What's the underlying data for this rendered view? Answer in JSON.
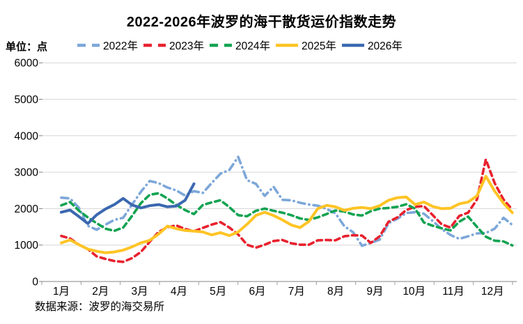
{
  "unit_label": "单位：点",
  "source_note": "数据来源：波罗的海交易所",
  "chart_data": {
    "type": "line",
    "title": "2022-2026年波罗的海干散货运价指数走势",
    "unit": "点",
    "grid": true,
    "legend_position": "top",
    "sampling": "weekly (approx. values read from plot)",
    "y_axis": {
      "min": 0,
      "max": 6000,
      "tick_interval": 1000,
      "ticks": [
        0,
        1000,
        2000,
        3000,
        4000,
        5000,
        6000
      ]
    },
    "x_axis": {
      "labels": [
        "1月",
        "2月",
        "3月",
        "4月",
        "5月",
        "6月",
        "7月",
        "8月",
        "9月",
        "10月",
        "11月",
        "12月"
      ]
    },
    "series": [
      {
        "name": "2022年",
        "color": "#7DA7D9",
        "line_style": "long-dash-dot",
        "values": [
          2300,
          2280,
          2020,
          1530,
          1420,
          1560,
          1690,
          1750,
          2110,
          2460,
          2760,
          2700,
          2580,
          2500,
          2360,
          2480,
          2430,
          2700,
          2960,
          3060,
          3420,
          2780,
          2680,
          2350,
          2600,
          2240,
          2230,
          2160,
          2110,
          2080,
          1990,
          1870,
          1520,
          1350,
          980,
          1060,
          1150,
          1600,
          1720,
          1880,
          1900,
          1860,
          1660,
          1440,
          1280,
          1170,
          1240,
          1320,
          1330,
          1450,
          1750,
          1550
        ]
      },
      {
        "name": "2023年",
        "color": "#E8212E",
        "line_style": "dashed",
        "values": [
          1250,
          1180,
          1010,
          890,
          690,
          620,
          560,
          540,
          640,
          810,
          1090,
          1360,
          1490,
          1540,
          1440,
          1380,
          1470,
          1560,
          1630,
          1480,
          1290,
          1010,
          930,
          1010,
          1110,
          1140,
          1050,
          1010,
          1010,
          1130,
          1140,
          1130,
          1240,
          1270,
          1260,
          1060,
          1240,
          1640,
          1760,
          1960,
          2050,
          2070,
          1820,
          1570,
          1480,
          1800,
          1890,
          2250,
          3350,
          2700,
          2250,
          1970
        ]
      },
      {
        "name": "2024年",
        "color": "#12A351",
        "line_style": "dashed",
        "values": [
          2090,
          2180,
          1940,
          1760,
          1600,
          1450,
          1390,
          1480,
          1800,
          2150,
          2380,
          2420,
          2280,
          2100,
          1960,
          1850,
          2100,
          2170,
          2230,
          2040,
          1820,
          1790,
          1940,
          2000,
          1940,
          1890,
          1820,
          1730,
          1690,
          1760,
          1850,
          1950,
          1920,
          1840,
          1810,
          1930,
          2000,
          2020,
          2050,
          2120,
          2000,
          1620,
          1530,
          1460,
          1400,
          1640,
          1780,
          1500,
          1230,
          1120,
          1100,
          990
        ]
      },
      {
        "name": "2025年",
        "color": "#FFC425",
        "line_style": "solid",
        "values": [
          1060,
          1140,
          1010,
          890,
          830,
          790,
          810,
          860,
          950,
          1060,
          1130,
          1300,
          1520,
          1450,
          1400,
          1380,
          1360,
          1280,
          1340,
          1260,
          1360,
          1570,
          1810,
          1900,
          1810,
          1690,
          1550,
          1480,
          1650,
          2000,
          2090,
          2050,
          1950,
          2010,
          2030,
          2000,
          2080,
          2230,
          2300,
          2320,
          2110,
          2180,
          2060,
          2000,
          2010,
          2130,
          2180,
          2350,
          2890,
          2480,
          2150,
          1890
        ]
      },
      {
        "name": "2026年",
        "color": "#3B68B0",
        "line_style": "solid",
        "values": [
          1900,
          1960,
          1780,
          1590,
          1830,
          1990,
          2110,
          2280,
          2100,
          2020,
          2080,
          2110,
          2050,
          2070,
          2230,
          2680
        ]
      }
    ]
  }
}
